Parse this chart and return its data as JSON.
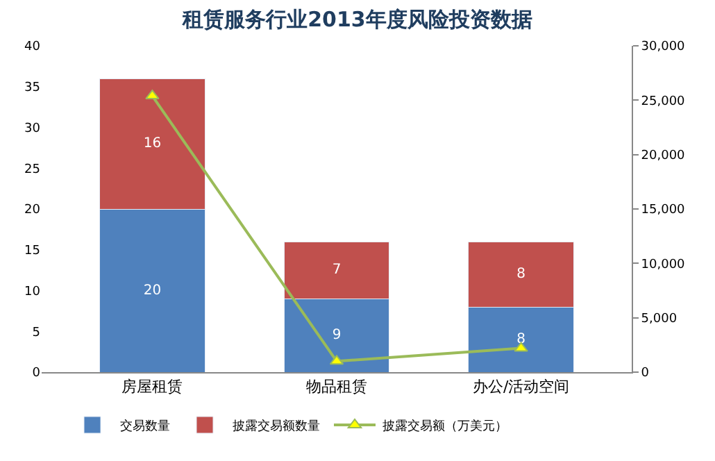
{
  "chart_data": {
    "type": "bar",
    "stacked": true,
    "title": "租赁服务行业2013年度风险投资数据",
    "categories": [
      "房屋租赁",
      "物品租赁",
      "办公/活动空间"
    ],
    "series": [
      {
        "name": "交易数量",
        "color": "#4f81bd",
        "values": [
          20,
          9,
          8
        ],
        "value_labels": [
          "20",
          "9",
          "8"
        ]
      },
      {
        "name": "披露交易额数量",
        "color": "#c0504d",
        "values": [
          16,
          7,
          8
        ],
        "value_labels": [
          "16",
          "7",
          "8"
        ]
      },
      {
        "name": "披露交易额（万美元）",
        "type": "line",
        "axis": "y2",
        "color": "#9bbb59",
        "values": [
          25400,
          1000,
          2200
        ],
        "marker": "triangle"
      }
    ],
    "ylim": [
      0,
      40
    ],
    "yticks": [
      0,
      5,
      10,
      15,
      20,
      25,
      30,
      35,
      40
    ],
    "y2lim": [
      0,
      30000
    ],
    "y2ticks": [
      {
        "value": 0,
        "label": "0"
      },
      {
        "value": 5000,
        "label": "5,000"
      },
      {
        "value": 10000,
        "label": "10,000"
      },
      {
        "value": 15000,
        "label": "15,000"
      },
      {
        "value": 20000,
        "label": "20,000"
      },
      {
        "value": 25000,
        "label": "25,000"
      },
      {
        "value": 30000,
        "label": "30,000"
      }
    ],
    "legend": "bottom"
  }
}
